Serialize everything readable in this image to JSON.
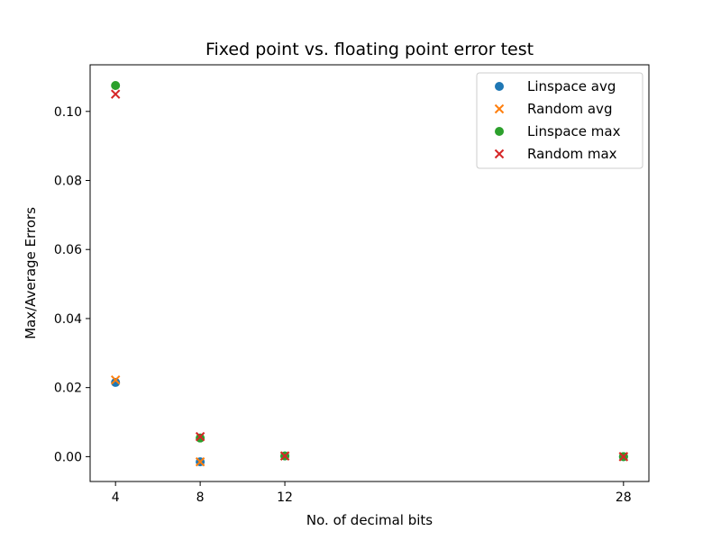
{
  "chart_data": {
    "type": "scatter",
    "title": "Fixed point vs. floating point error test",
    "xlabel": "No. of decimal bits",
    "ylabel": "Max/Average Errors",
    "xlim": [
      2.8,
      29.2
    ],
    "ylim": [
      -0.0072,
      0.1135
    ],
    "x_ticks": [
      4,
      8,
      12,
      28
    ],
    "x_tick_labels": [
      "4",
      "8",
      "12",
      "28"
    ],
    "y_ticks": [
      0.0,
      0.02,
      0.04,
      0.06,
      0.08,
      0.1
    ],
    "y_tick_labels": [
      "0.00",
      "0.02",
      "0.04",
      "0.06",
      "0.08",
      "0.10"
    ],
    "grid": false,
    "legend_position": "top-right",
    "series": [
      {
        "name": "Linspace avg",
        "marker": "circle",
        "color": "#1f77b4",
        "x": [
          4,
          8,
          12,
          28
        ],
        "y": [
          0.0215,
          -0.0015,
          0.0002,
          0.0
        ]
      },
      {
        "name": "Random avg",
        "marker": "x",
        "color": "#ff7f0e",
        "x": [
          4,
          8,
          12,
          28
        ],
        "y": [
          0.0222,
          -0.0015,
          0.0002,
          0.0
        ]
      },
      {
        "name": "Linspace max",
        "marker": "circle",
        "color": "#2ca02c",
        "x": [
          4,
          8,
          12,
          28
        ],
        "y": [
          0.1075,
          0.0054,
          0.0002,
          0.0
        ]
      },
      {
        "name": "Random max",
        "marker": "x",
        "color": "#d62728",
        "x": [
          4,
          8,
          12,
          28
        ],
        "y": [
          0.105,
          0.0058,
          0.0002,
          0.0
        ]
      }
    ]
  }
}
